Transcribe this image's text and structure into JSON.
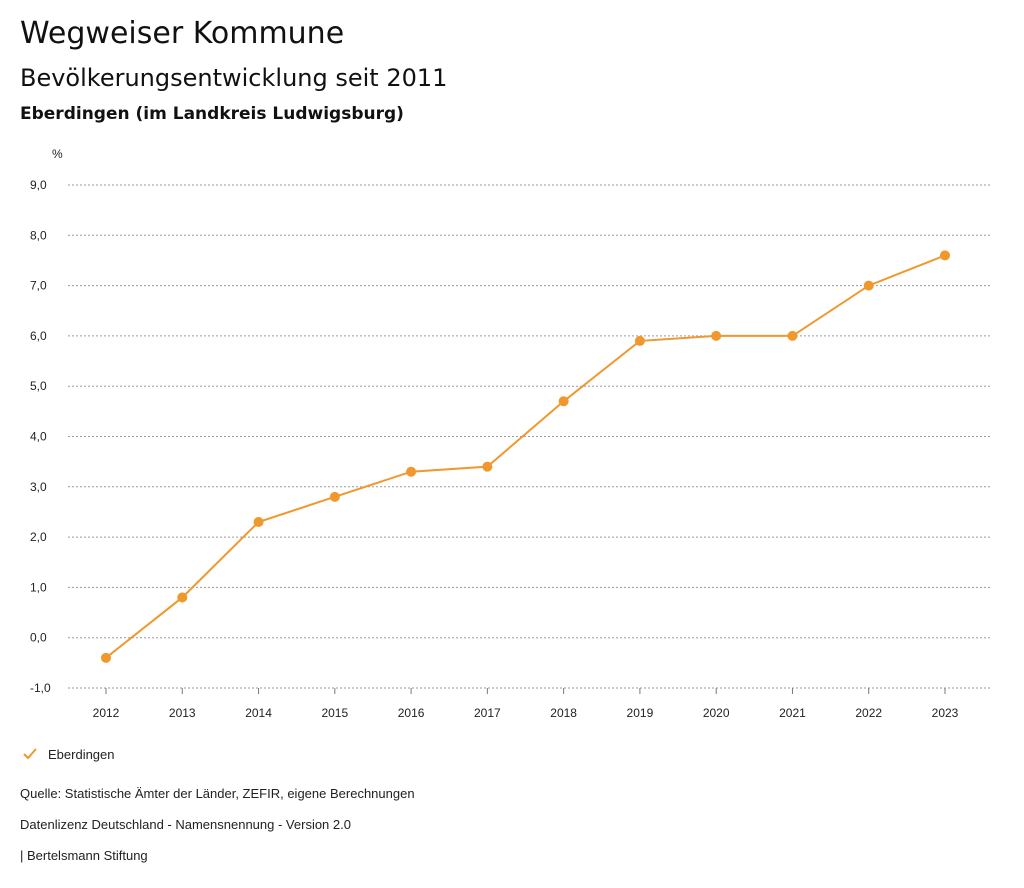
{
  "header": {
    "title": "Wegweiser Kommune",
    "subtitle": "Bevölkerungsentwicklung seit 2011",
    "region": "Eberdingen (im Landkreis Ludwigsburg)"
  },
  "chart_data": {
    "type": "line",
    "ylabel": "%",
    "ylim": [
      -1,
      9
    ],
    "yticks": [
      "9,0",
      "8,0",
      "7,0",
      "6,0",
      "5,0",
      "4,0",
      "3,0",
      "2,0",
      "1,0",
      "0,0",
      "-1,0"
    ],
    "ytick_values": [
      9,
      8,
      7,
      6,
      5,
      4,
      3,
      2,
      1,
      0,
      -1
    ],
    "x": [
      "2012",
      "2013",
      "2014",
      "2015",
      "2016",
      "2017",
      "2018",
      "2019",
      "2020",
      "2021",
      "2022",
      "2023"
    ],
    "series": [
      {
        "name": "Eberdingen",
        "color": "#f0982d",
        "values": [
          -0.4,
          0.8,
          2.3,
          2.8,
          3.3,
          3.4,
          4.7,
          5.9,
          6.0,
          6.0,
          7.0,
          7.6
        ]
      }
    ],
    "grid": true,
    "legend_position": "bottom-left"
  },
  "legend": {
    "label": "Eberdingen",
    "icon": "check-icon",
    "color": "#f0982d"
  },
  "footer": {
    "source": "Quelle: Statistische Ämter der Länder, ZEFIR, eigene Berechnungen",
    "license": "Datenlizenz Deutschland - Namensnennung - Version 2.0",
    "publisher": "| Bertelsmann Stiftung"
  }
}
